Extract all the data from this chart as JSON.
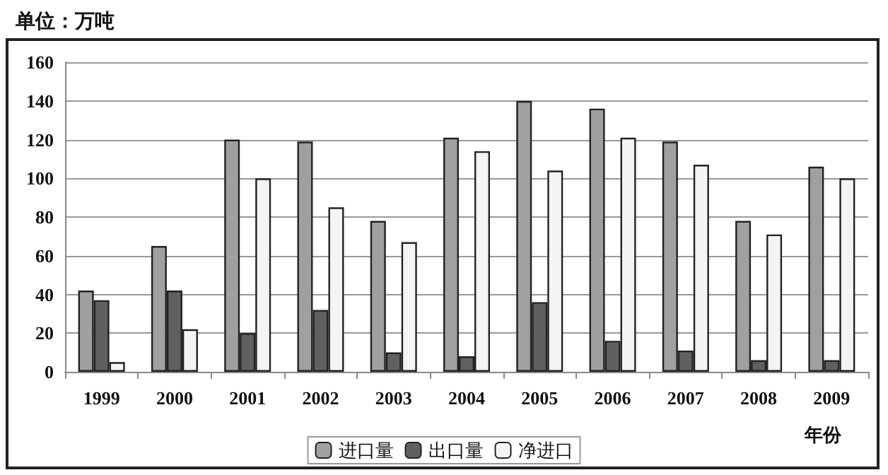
{
  "chart_data": {
    "type": "bar",
    "ylabel": "单位：万吨",
    "xlabel": "年份",
    "categories": [
      "1999",
      "2000",
      "2001",
      "2002",
      "2003",
      "2004",
      "2005",
      "2006",
      "2007",
      "2008",
      "2009"
    ],
    "series": [
      {
        "name": "进口量",
        "color": "#a0a0a0",
        "values": [
          42,
          65,
          120,
          119,
          78,
          121,
          140,
          136,
          119,
          78,
          106
        ]
      },
      {
        "name": "出口量",
        "color": "#606060",
        "values": [
          37,
          42,
          20,
          32,
          10,
          8,
          36,
          16,
          11,
          6,
          6
        ]
      },
      {
        "name": "净进口",
        "color": "#f4f4f4",
        "values": [
          5,
          22,
          100,
          85,
          67,
          114,
          104,
          121,
          107,
          71,
          100
        ]
      }
    ],
    "ylim": [
      0,
      160
    ],
    "yticks": [
      0,
      20,
      40,
      60,
      80,
      100,
      120,
      140,
      160
    ],
    "grid": "y",
    "legend": "bottom"
  }
}
